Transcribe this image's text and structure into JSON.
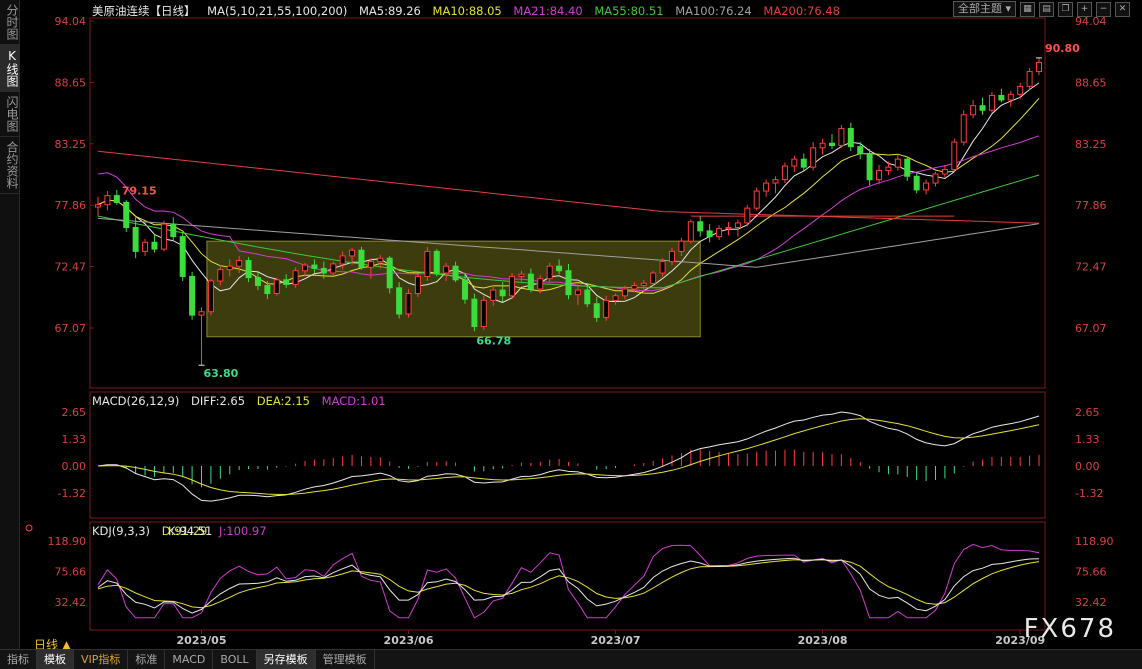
{
  "side_tabs": [
    {
      "label": "分时图"
    },
    {
      "label": "K线图",
      "active": true
    },
    {
      "label": "闪电图"
    },
    {
      "label": "合约资料"
    }
  ],
  "main": {
    "symbol": "美原油连续【日线】",
    "ma_header": "MA(5,10,21,55,100,200)",
    "ma": [
      {
        "label": "MA5:89.26",
        "color": "#e8e8e8"
      },
      {
        "label": "MA10:88.05",
        "color": "#e6e03a"
      },
      {
        "label": "MA21:84.40",
        "color": "#d23bd2"
      },
      {
        "label": "MA55:80.51",
        "color": "#3cc83c"
      },
      {
        "label": "MA100:76.24",
        "color": "#a0a0a0"
      },
      {
        "label": "MA200:76.48",
        "color": "#e04040"
      }
    ],
    "theme_label": "全部主题",
    "axis_labels": [
      "94.04",
      "88.65",
      "83.25",
      "77.86",
      "72.47",
      "67.07"
    ],
    "axis_values": [
      94.04,
      88.65,
      83.25,
      77.86,
      72.47,
      67.07
    ],
    "annotations": {
      "high": "90.80",
      "low": "63.80",
      "mid_low": "66.78",
      "left_high": "79.15"
    }
  },
  "macd": {
    "header": "MACD(26,12,9)",
    "diff": "DIFF:2.65",
    "dea": "DEA:2.15",
    "macd": "MACD:1.01",
    "axis_labels": [
      "2.65",
      "1.33",
      "0.00",
      "-1.32"
    ],
    "axis_values": [
      2.65,
      1.33,
      0.0,
      -1.32
    ]
  },
  "kdj": {
    "header": "KDJ(9,3,3)",
    "k": "K:94.51",
    "d": "D:91.29",
    "j": "J:100.97",
    "axis_labels": [
      "118.90",
      "75.66",
      "32.42"
    ],
    "axis_values": [
      118.9,
      75.66,
      32.42
    ]
  },
  "x_axis": [
    "2023/05",
    "2023/06",
    "2023/07",
    "2023/08",
    "2023/09"
  ],
  "period_label": "日线",
  "bottom_tabs": [
    {
      "label": "指标"
    },
    {
      "label": "模板",
      "active": true
    },
    {
      "label": "VIP指标"
    },
    {
      "label": "标准"
    },
    {
      "label": "MACD"
    },
    {
      "label": "BOLL"
    },
    {
      "label": "另存模板",
      "active": true
    },
    {
      "label": "管理模板"
    }
  ],
  "watermark": "FX678",
  "chart_data": {
    "type": "candlestick",
    "candles": [
      [
        77.7,
        78.6,
        76.9,
        77.9
      ],
      [
        77.9,
        79.1,
        77.4,
        78.7
      ],
      [
        78.7,
        79.2,
        77.9,
        78.1
      ],
      [
        78.1,
        78.3,
        75.5,
        75.9
      ],
      [
        75.9,
        76.8,
        73.2,
        73.8
      ],
      [
        73.8,
        74.9,
        73.4,
        74.6
      ],
      [
        74.6,
        75.3,
        73.7,
        74.0
      ],
      [
        74.0,
        76.5,
        73.8,
        76.2
      ],
      [
        76.2,
        76.8,
        74.8,
        75.1
      ],
      [
        75.1,
        75.5,
        71.2,
        71.6
      ],
      [
        71.6,
        72.0,
        67.8,
        68.2
      ],
      [
        68.2,
        68.9,
        63.8,
        68.5
      ],
      [
        68.5,
        71.4,
        68.2,
        71.2
      ],
      [
        71.2,
        72.6,
        70.8,
        72.2
      ],
      [
        72.2,
        73.1,
        71.6,
        72.5
      ],
      [
        72.5,
        73.4,
        71.9,
        73.0
      ],
      [
        73.0,
        73.3,
        71.1,
        71.5
      ],
      [
        71.5,
        72.0,
        70.4,
        70.8
      ],
      [
        70.8,
        71.2,
        69.6,
        70.1
      ],
      [
        70.1,
        71.5,
        69.9,
        71.3
      ],
      [
        71.3,
        71.8,
        70.6,
        70.9
      ],
      [
        70.9,
        72.4,
        70.6,
        72.1
      ],
      [
        72.1,
        72.8,
        71.6,
        72.6
      ],
      [
        72.6,
        73.1,
        71.9,
        72.3
      ],
      [
        72.3,
        72.9,
        71.4,
        71.9
      ],
      [
        71.9,
        72.9,
        71.7,
        72.7
      ],
      [
        72.7,
        73.8,
        72.2,
        73.4
      ],
      [
        73.4,
        74.1,
        72.6,
        73.9
      ],
      [
        73.9,
        74.2,
        72.2,
        72.4
      ],
      [
        72.4,
        73.2,
        71.4,
        72.9
      ],
      [
        72.9,
        73.5,
        72.3,
        73.2
      ],
      [
        73.2,
        73.4,
        70.1,
        70.6
      ],
      [
        70.6,
        71.1,
        67.9,
        68.3
      ],
      [
        68.3,
        70.5,
        68.0,
        70.1
      ],
      [
        70.1,
        71.8,
        69.8,
        71.6
      ],
      [
        71.6,
        74.2,
        71.2,
        73.8
      ],
      [
        73.8,
        74.0,
        71.6,
        71.9
      ],
      [
        71.9,
        72.8,
        71.2,
        72.5
      ],
      [
        72.5,
        72.9,
        71.1,
        71.3
      ],
      [
        71.3,
        71.8,
        69.2,
        69.6
      ],
      [
        69.6,
        70.1,
        66.78,
        67.2
      ],
      [
        67.2,
        69.9,
        66.9,
        69.5
      ],
      [
        69.5,
        70.8,
        69.0,
        70.4
      ],
      [
        70.4,
        71.1,
        69.4,
        69.9
      ],
      [
        69.9,
        71.9,
        69.6,
        71.6
      ],
      [
        71.6,
        72.1,
        71.0,
        71.8
      ],
      [
        71.8,
        72.3,
        70.2,
        70.5
      ],
      [
        70.5,
        71.7,
        70.1,
        71.4
      ],
      [
        71.4,
        72.8,
        71.1,
        72.5
      ],
      [
        72.5,
        73.1,
        71.8,
        72.1
      ],
      [
        72.1,
        72.7,
        69.6,
        70.0
      ],
      [
        70.0,
        70.9,
        69.1,
        70.4
      ],
      [
        70.4,
        70.7,
        68.9,
        69.2
      ],
      [
        69.2,
        69.8,
        67.6,
        68.0
      ],
      [
        68.0,
        69.9,
        67.7,
        69.5
      ],
      [
        69.5,
        70.1,
        69.1,
        69.9
      ],
      [
        69.9,
        70.8,
        69.6,
        70.5
      ],
      [
        70.5,
        71.1,
        70.2,
        70.8
      ],
      [
        70.8,
        71.3,
        70.1,
        71.0
      ],
      [
        71.0,
        72.1,
        70.8,
        71.9
      ],
      [
        71.9,
        73.2,
        71.6,
        72.9
      ],
      [
        72.9,
        74.1,
        72.6,
        73.8
      ],
      [
        73.8,
        75.0,
        73.4,
        74.7
      ],
      [
        74.7,
        76.6,
        74.5,
        76.4
      ],
      [
        76.4,
        76.9,
        75.1,
        75.6
      ],
      [
        75.6,
        76.2,
        74.6,
        75.1
      ],
      [
        75.1,
        76.1,
        74.8,
        75.8
      ],
      [
        75.8,
        76.4,
        75.2,
        75.9
      ],
      [
        75.9,
        76.6,
        75.1,
        76.3
      ],
      [
        76.3,
        77.9,
        76.0,
        77.6
      ],
      [
        77.6,
        79.4,
        77.4,
        79.1
      ],
      [
        79.1,
        80.1,
        78.6,
        79.8
      ],
      [
        79.8,
        80.4,
        78.9,
        80.1
      ],
      [
        80.1,
        81.6,
        79.8,
        81.3
      ],
      [
        81.3,
        82.2,
        80.8,
        81.9
      ],
      [
        81.9,
        82.4,
        80.9,
        81.2
      ],
      [
        81.2,
        83.4,
        80.9,
        82.9
      ],
      [
        82.9,
        83.7,
        82.3,
        83.3
      ],
      [
        83.3,
        84.1,
        82.8,
        83.1
      ],
      [
        83.1,
        84.9,
        82.9,
        84.6
      ],
      [
        84.6,
        85.1,
        82.6,
        83.0
      ],
      [
        83.0,
        83.4,
        81.9,
        82.4
      ],
      [
        82.4,
        82.8,
        79.6,
        80.1
      ],
      [
        80.1,
        81.4,
        79.7,
        80.9
      ],
      [
        80.9,
        81.7,
        80.5,
        81.2
      ],
      [
        81.2,
        82.3,
        80.9,
        81.9
      ],
      [
        81.9,
        82.1,
        80.0,
        80.4
      ],
      [
        80.4,
        80.7,
        78.9,
        79.2
      ],
      [
        79.2,
        80.1,
        78.8,
        79.8
      ],
      [
        79.8,
        80.8,
        79.5,
        80.6
      ],
      [
        80.6,
        81.4,
        80.3,
        81.0
      ],
      [
        81.0,
        83.7,
        80.8,
        83.4
      ],
      [
        83.4,
        86.2,
        83.1,
        85.8
      ],
      [
        85.8,
        87.1,
        85.5,
        86.6
      ],
      [
        86.6,
        87.3,
        85.8,
        86.2
      ],
      [
        86.2,
        87.8,
        86.0,
        87.5
      ],
      [
        87.5,
        88.1,
        86.9,
        87.1
      ],
      [
        87.1,
        87.9,
        86.5,
        87.6
      ],
      [
        87.6,
        88.6,
        87.2,
        88.3
      ],
      [
        88.3,
        89.9,
        88.0,
        89.6
      ],
      [
        89.6,
        90.8,
        89.3,
        90.4
      ]
    ],
    "ma_series": [
      {
        "name": "MA5",
        "start": 78.5,
        "end": 89.26
      },
      {
        "name": "MA10",
        "start": 78.6,
        "end": 88.05
      },
      {
        "name": "MA21",
        "start": 79.8,
        "end": 84.4
      },
      {
        "name": "MA55",
        "start": 76.9,
        "end": 80.51
      },
      {
        "name": "MA100",
        "start": 76.7,
        "end": 76.24
      },
      {
        "name": "MA200",
        "start": 82.6,
        "end": 76.48
      }
    ],
    "macd": {
      "diff": 2.65,
      "dea": 2.15,
      "macd": 1.01
    },
    "kdj": {
      "k": 94.51,
      "d": 91.29,
      "j": 100.97
    },
    "x_ticks": [
      "2023/05",
      "2023/06",
      "2023/07",
      "2023/08",
      "2023/09"
    ]
  }
}
